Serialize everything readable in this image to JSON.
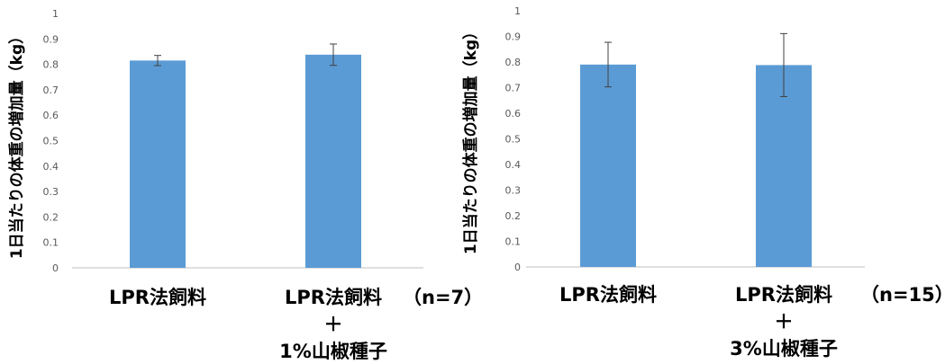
{
  "chart_data": [
    {
      "type": "bar",
      "ylabel": "1日当たりの体重の増加量（kg）",
      "ylim": [
        0,
        1
      ],
      "yticks": [
        "0",
        "0.1",
        "0.2",
        "0.3",
        "0.4",
        "0.5",
        "0.6",
        "0.7",
        "0.8",
        "0.9",
        "1"
      ],
      "categories": [
        [
          "LPR法飼料"
        ],
        [
          "LPR法飼料",
          "＋",
          "1%山椒種子"
        ]
      ],
      "values": [
        0.815,
        0.838
      ],
      "errors": [
        0.02,
        0.042
      ],
      "note": "（n=7）",
      "grid": false,
      "bar_color": "#5B9BD5"
    },
    {
      "type": "bar",
      "ylabel": "1日当たりの体重の増加量（kg）",
      "ylim": [
        0,
        1
      ],
      "yticks": [
        "0",
        "0.1",
        "0.2",
        "0.3",
        "0.4",
        "0.5",
        "0.6",
        "0.7",
        "0.8",
        "0.9",
        "1"
      ],
      "categories": [
        [
          "LPR法飼料"
        ],
        [
          "LPR法飼料",
          "＋",
          "3%山椒種子"
        ]
      ],
      "values": [
        0.79,
        0.788
      ],
      "errors": [
        0.087,
        0.123
      ],
      "note": "（n=15）",
      "grid": false,
      "bar_color": "#5B9BD5"
    }
  ]
}
